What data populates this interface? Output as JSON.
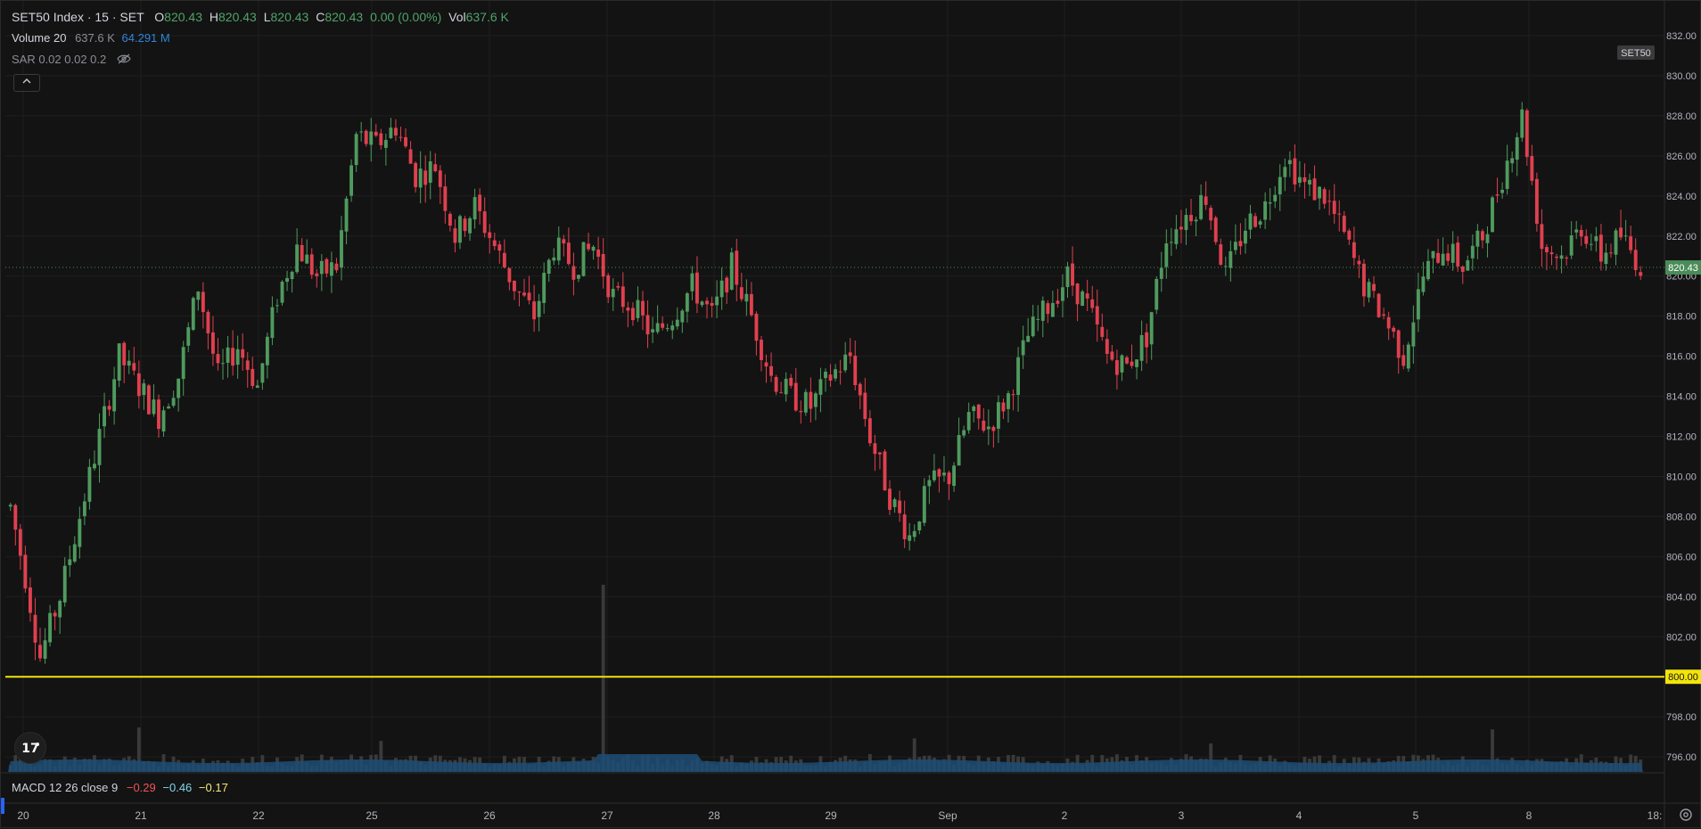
{
  "header": {
    "symbol": "SET50 Index · 15 · SET",
    "o_label": "O",
    "o_value": "820.43",
    "h_label": "H",
    "h_value": "820.43",
    "l_label": "L",
    "l_value": "820.43",
    "c_label": "C",
    "c_value": "820.43",
    "change": "0.00 (0.00%)",
    "vol_label": "Vol",
    "vol_value": "637.6 K"
  },
  "volume_indicator": {
    "label": "Volume 20",
    "value": "637.6 K",
    "ma_value": "64.291 M"
  },
  "sar_indicator": {
    "label": "SAR 0.02 0.02 0.2"
  },
  "macd_indicator": {
    "label": "MACD 12 26 close 9",
    "macd": "−0.29",
    "signal": "−0.46",
    "hist": "−0.17"
  },
  "symbol_tag": "SET50",
  "colors": {
    "up": "#4f9a5e",
    "down": "#e0404f",
    "horizontal_line": "#f2e40c",
    "price_tag": "#4a8c58",
    "volume_ma": "#1f4e75",
    "volume_bar": "#3a3a3a",
    "background": "#131313"
  },
  "icons": {
    "collapse": "chevron-up-icon",
    "visibility": "eye-off-icon",
    "logo": "tradingview-logo-icon",
    "settings": "gear-icon"
  },
  "chart_data": {
    "type": "candlestick",
    "title": "SET50 Index · 15 · SET",
    "y_ticks": [
      "832.00",
      "830.00",
      "828.00",
      "826.00",
      "824.00",
      "822.00",
      "820.00",
      "818.00",
      "816.00",
      "814.00",
      "812.00",
      "810.00",
      "808.00",
      "806.00",
      "804.00",
      "802.00",
      "800.00",
      "798.00",
      "796.00"
    ],
    "ylim": [
      795.5,
      832.0
    ],
    "x_ticks": [
      "20",
      "21",
      "22",
      "25",
      "26",
      "27",
      "28",
      "29",
      "Sep",
      "2",
      "3",
      "4",
      "5",
      "8",
      "18:"
    ],
    "last_price": "820.43",
    "horizontal_line": {
      "value": 800.0,
      "label": "800.00"
    },
    "grid": true,
    "series": [
      {
        "name": "SET50 Index",
        "anchors": [
          [
            0,
            808.5
          ],
          [
            3,
            805
          ],
          [
            6,
            801
          ],
          [
            10,
            804
          ],
          [
            14,
            808
          ],
          [
            18,
            812
          ],
          [
            22,
            816
          ],
          [
            26,
            814.5
          ],
          [
            30,
            813
          ],
          [
            34,
            815
          ],
          [
            38,
            819.5
          ],
          [
            42,
            815
          ],
          [
            46,
            816.5
          ],
          [
            50,
            814.5
          ],
          [
            54,
            819
          ],
          [
            58,
            821.5
          ],
          [
            62,
            820
          ],
          [
            66,
            820.5
          ],
          [
            70,
            827
          ],
          [
            74,
            826.5
          ],
          [
            78,
            827.5
          ],
          [
            82,
            825
          ],
          [
            86,
            825.5
          ],
          [
            90,
            822
          ],
          [
            94,
            823.5
          ],
          [
            98,
            821.5
          ],
          [
            102,
            819.5
          ],
          [
            106,
            818
          ],
          [
            110,
            821.5
          ],
          [
            114,
            820.5
          ],
          [
            118,
            821.5
          ],
          [
            122,
            819
          ],
          [
            126,
            818.5
          ],
          [
            130,
            817
          ],
          [
            134,
            818
          ],
          [
            138,
            819.5
          ],
          [
            142,
            818
          ],
          [
            146,
            820.5
          ],
          [
            150,
            818
          ],
          [
            154,
            815
          ],
          [
            158,
            814
          ],
          [
            162,
            813.5
          ],
          [
            166,
            815
          ],
          [
            170,
            816
          ],
          [
            174,
            812
          ],
          [
            178,
            809
          ],
          [
            182,
            807
          ],
          [
            186,
            809.5
          ],
          [
            190,
            810
          ],
          [
            194,
            813
          ],
          [
            198,
            812.5
          ],
          [
            202,
            814
          ],
          [
            206,
            817
          ],
          [
            210,
            818.5
          ],
          [
            214,
            820
          ],
          [
            218,
            818.5
          ],
          [
            222,
            816
          ],
          [
            226,
            815.5
          ],
          [
            230,
            817
          ],
          [
            234,
            822
          ],
          [
            238,
            823
          ],
          [
            242,
            824
          ],
          [
            246,
            820
          ],
          [
            250,
            822.5
          ],
          [
            254,
            823.5
          ],
          [
            258,
            826
          ],
          [
            262,
            824.5
          ],
          [
            266,
            824
          ],
          [
            270,
            822
          ],
          [
            274,
            819.5
          ],
          [
            278,
            818
          ],
          [
            282,
            816
          ],
          [
            286,
            820
          ],
          [
            290,
            821.5
          ],
          [
            294,
            820.5
          ],
          [
            298,
            822
          ],
          [
            302,
            825
          ],
          [
            306,
            828
          ],
          [
            310,
            821.5
          ],
          [
            314,
            821
          ],
          [
            318,
            822.5
          ],
          [
            322,
            821
          ],
          [
            326,
            822
          ],
          [
            330,
            820.5
          ]
        ]
      }
    ],
    "volume": {
      "n_bars": 330,
      "spike_indices": [
        120,
        26,
        75,
        183,
        243,
        300
      ],
      "unit": "K"
    }
  }
}
